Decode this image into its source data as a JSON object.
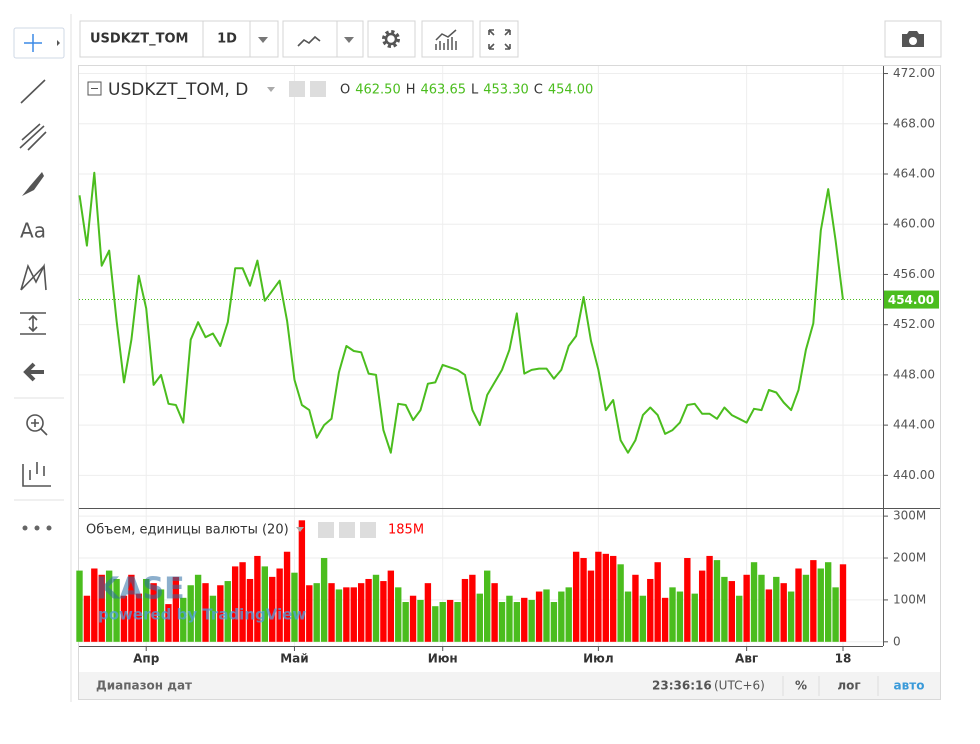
{
  "toolbar": {
    "symbol": "USDKZT_TOM",
    "interval": "1D",
    "drawing_text_tool": "Aa"
  },
  "legend": {
    "title": "USDKZT_TOM, D",
    "open_label": "O",
    "open": "462.50",
    "high_label": "H",
    "high": "463.65",
    "low_label": "L",
    "low": "453.30",
    "close_label": "C",
    "close": "454.00"
  },
  "volume_legend": {
    "title": "Объем, единицы валюты (20)"
  },
  "watermark": {
    "brand": "KASE",
    "powered": "powered by TradingView"
  },
  "footer": {
    "range": "Диапазон дат",
    "time": "23:36:16",
    "timezone": "(UTC+6)",
    "percent": "%",
    "log": "лог",
    "auto": "авто"
  },
  "chart_data": [
    {
      "type": "line",
      "color": "#4bbd1e",
      "grid": true,
      "ylim": [
        437.4,
        472.6
      ],
      "yticks": [
        {
          "value": 440,
          "label": "440.00"
        },
        {
          "value": 444,
          "label": "444.00"
        },
        {
          "value": 448,
          "label": "448.00"
        },
        {
          "value": 452,
          "label": "452.00"
        },
        {
          "value": 456,
          "label": "456.00"
        },
        {
          "value": 460,
          "label": "460.00"
        },
        {
          "value": 464,
          "label": "464.00"
        },
        {
          "value": 468,
          "label": "468.00"
        },
        {
          "value": 472,
          "label": "472.00"
        }
      ],
      "last_value": {
        "value": 454,
        "label": "454.00"
      },
      "values": [
        462.3,
        458.3,
        464.1,
        456.7,
        457.9,
        452.3,
        447.4,
        450.8,
        455.9,
        453.3,
        447.2,
        448,
        445.7,
        445.6,
        444.2,
        450.8,
        452.2,
        451,
        451.3,
        450.3,
        452.2,
        456.5,
        456.5,
        455.1,
        457.1,
        453.9,
        454.7,
        455.5,
        452.3,
        447.6,
        445.6,
        445.2,
        443,
        444,
        444.5,
        448.2,
        450.3,
        449.9,
        449.8,
        448.1,
        448,
        443.6,
        441.8,
        445.7,
        445.6,
        444.4,
        445.2,
        447.3,
        447.4,
        448.8,
        448.6,
        448.4,
        448,
        445.2,
        444,
        446.4,
        447.4,
        448.4,
        450,
        452.9,
        448.1,
        448.4,
        448.5,
        448.5,
        447.7,
        448.4,
        450.3,
        451.1,
        454.2,
        450.7,
        448.4,
        445.2,
        446,
        442.8,
        441.8,
        442.8,
        444.8,
        445.4,
        444.8,
        443.3,
        443.6,
        444.2,
        445.6,
        445.7,
        444.9,
        444.9,
        444.5,
        445.4,
        444.8,
        444.5,
        444.2,
        445.3,
        445.2,
        446.8,
        446.6,
        445.8,
        445.2,
        446.8,
        450,
        452.1,
        459.5,
        462.8,
        458.7,
        454
      ]
    },
    {
      "type": "bar",
      "grid": true,
      "ylim": [
        -10,
        317
      ],
      "yticks": [
        0,
        {
          "value": 100,
          "label": "100M"
        },
        {
          "value": 200,
          "label": "200M"
        },
        {
          "value": 300,
          "label": "300M"
        }
      ],
      "last_value": {
        "value": 185,
        "label": "185M"
      },
      "categories": [
        null,
        null,
        null,
        null,
        null,
        null,
        null,
        null,
        null,
        "Апр",
        null,
        null,
        null,
        null,
        null,
        null,
        null,
        null,
        null,
        null,
        null,
        null,
        null,
        null,
        null,
        null,
        null,
        null,
        null,
        "Май",
        null,
        null,
        null,
        null,
        null,
        null,
        null,
        null,
        null,
        null,
        null,
        null,
        null,
        null,
        null,
        null,
        null,
        null,
        null,
        "Июн",
        null,
        null,
        null,
        null,
        null,
        null,
        null,
        null,
        null,
        null,
        null,
        null,
        null,
        null,
        null,
        null,
        null,
        null,
        null,
        null,
        "Июл",
        null,
        null,
        null,
        null,
        null,
        null,
        null,
        null,
        null,
        null,
        null,
        null,
        null,
        null,
        null,
        null,
        null,
        null,
        null,
        "Авг",
        null,
        null,
        null,
        null,
        null,
        null,
        null,
        null,
        null,
        null,
        null,
        null,
        "18"
      ],
      "values": [
        170,
        110,
        175,
        160,
        170,
        150,
        110,
        160,
        115,
        150,
        140,
        125,
        90,
        155,
        105,
        135,
        160,
        140,
        110,
        135,
        145,
        180,
        190,
        150,
        205,
        180,
        155,
        175,
        215,
        165,
        290,
        135,
        140,
        200,
        140,
        125,
        130,
        130,
        140,
        150,
        160,
        145,
        170,
        130,
        95,
        110,
        100,
        140,
        85,
        95,
        100,
        95,
        150,
        160,
        115,
        170,
        140,
        95,
        110,
        95,
        105,
        100,
        120,
        125,
        95,
        120,
        130,
        215,
        200,
        170,
        215,
        210,
        205,
        185,
        120,
        160,
        110,
        150,
        190,
        105,
        130,
        120,
        200,
        115,
        170,
        205,
        195,
        155,
        145,
        110,
        160,
        190,
        160,
        125,
        155,
        140,
        120,
        175,
        160,
        195,
        175,
        190,
        130,
        185
      ],
      "colors": [
        "#4bbd1e",
        "#ff0000",
        "#ff0000",
        "#ff0000",
        "#4bbd1e",
        "#4bbd1e",
        "#ff0000",
        "#ff0000",
        "#ff0000",
        "#4bbd1e",
        "#ff0000",
        "#4bbd1e",
        "#ff0000",
        "#ff0000",
        "#4bbd1e",
        "#4bbd1e",
        "#4bbd1e",
        "#ff0000",
        "#4bbd1e",
        "#ff0000",
        "#4bbd1e",
        "#ff0000",
        "#ff0000",
        "#ff0000",
        "#ff0000",
        "#4bbd1e",
        "#ff0000",
        "#ff0000",
        "#ff0000",
        "#4bbd1e",
        "#ff0000",
        "#ff0000",
        "#4bbd1e",
        "#4bbd1e",
        "#ff0000",
        "#4bbd1e",
        "#ff0000",
        "#ff0000",
        "#ff0000",
        "#ff0000",
        "#4bbd1e",
        "#ff0000",
        "#ff0000",
        "#4bbd1e",
        "#4bbd1e",
        "#ff0000",
        "#4bbd1e",
        "#ff0000",
        "#4bbd1e",
        "#4bbd1e",
        "#ff0000",
        "#4bbd1e",
        "#ff0000",
        "#ff0000",
        "#4bbd1e",
        "#4bbd1e",
        "#ff0000",
        "#4bbd1e",
        "#4bbd1e",
        "#4bbd1e",
        "#ff0000",
        "#4bbd1e",
        "#ff0000",
        "#4bbd1e",
        "#4bbd1e",
        "#4bbd1e",
        "#4bbd1e",
        "#ff0000",
        "#ff0000",
        "#ff0000",
        "#ff0000",
        "#ff0000",
        "#ff0000",
        "#4bbd1e",
        "#4bbd1e",
        "#ff0000",
        "#4bbd1e",
        "#ff0000",
        "#ff0000",
        "#ff0000",
        "#4bbd1e",
        "#4bbd1e",
        "#ff0000",
        "#4bbd1e",
        "#ff0000",
        "#ff0000",
        "#4bbd1e",
        "#4bbd1e",
        "#ff0000",
        "#4bbd1e",
        "#ff0000",
        "#4bbd1e",
        "#4bbd1e",
        "#ff0000",
        "#4bbd1e",
        "#ff0000",
        "#4bbd1e",
        "#ff0000",
        "#4bbd1e",
        "#ff0000",
        "#4bbd1e",
        "#4bbd1e",
        "#4bbd1e",
        "#ff0000"
      ]
    }
  ]
}
